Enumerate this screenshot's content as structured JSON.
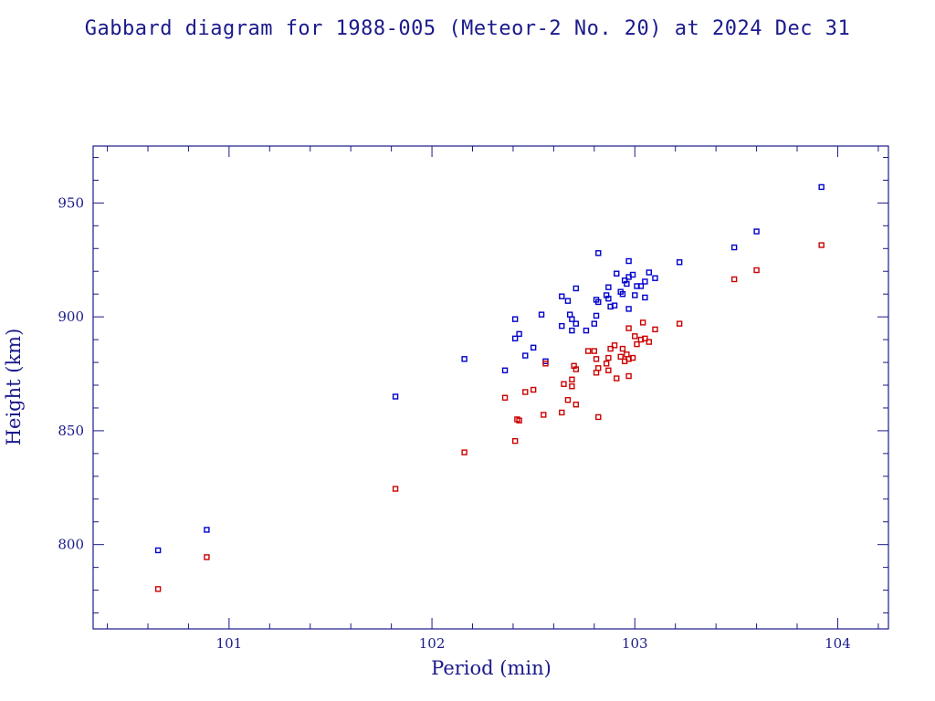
{
  "chart_data": {
    "type": "scatter",
    "title": "Gabbard diagram for 1988-005 (Meteor-2 No. 20) at 2024 Dec 31",
    "xlabel": "Period (min)",
    "ylabel": "Height (km)",
    "xlim": [
      100.33,
      104.25
    ],
    "ylim": [
      763,
      975
    ],
    "xticks": [
      101,
      102,
      103,
      104
    ],
    "yticks": [
      800,
      850,
      900,
      950
    ],
    "x_minor_step": 0.2,
    "y_minor_step": 10,
    "grid": false,
    "legend": "none",
    "colors": {
      "axes": "#1a1a8c",
      "text": "#1a1a8c",
      "apogee": "#0000cc",
      "perigee": "#cc0000"
    },
    "series": [
      {
        "key": "apogee",
        "points": [
          [
            100.65,
            797.5
          ],
          [
            100.89,
            806.5
          ],
          [
            101.82,
            865.0
          ],
          [
            102.16,
            881.5
          ],
          [
            102.36,
            876.5
          ],
          [
            102.41,
            899.0
          ],
          [
            102.41,
            890.5
          ],
          [
            102.43,
            892.5
          ],
          [
            102.46,
            883.0
          ],
          [
            102.5,
            886.5
          ],
          [
            102.54,
            901.0
          ],
          [
            102.56,
            880.5
          ],
          [
            102.64,
            909.0
          ],
          [
            102.64,
            896.0
          ],
          [
            102.67,
            907.0
          ],
          [
            102.68,
            901.0
          ],
          [
            102.69,
            899.0
          ],
          [
            102.69,
            894.0
          ],
          [
            102.71,
            912.5
          ],
          [
            102.71,
            897.0
          ],
          [
            102.76,
            894.0
          ],
          [
            102.8,
            897.0
          ],
          [
            102.81,
            900.5
          ],
          [
            102.81,
            907.5
          ],
          [
            102.82,
            906.5
          ],
          [
            102.82,
            928.0
          ],
          [
            102.86,
            909.5
          ],
          [
            102.87,
            913.0
          ],
          [
            102.87,
            908.0
          ],
          [
            102.88,
            904.5
          ],
          [
            102.9,
            905.0
          ],
          [
            102.91,
            919.0
          ],
          [
            102.93,
            911.0
          ],
          [
            102.94,
            910.0
          ],
          [
            102.95,
            916.0
          ],
          [
            102.96,
            914.5
          ],
          [
            102.97,
            917.5
          ],
          [
            102.97,
            903.5
          ],
          [
            102.97,
            924.5
          ],
          [
            102.99,
            918.5
          ],
          [
            103.0,
            909.5
          ],
          [
            103.01,
            913.5
          ],
          [
            103.03,
            913.5
          ],
          [
            103.05,
            908.5
          ],
          [
            103.05,
            915.5
          ],
          [
            103.07,
            919.5
          ],
          [
            103.1,
            917.0
          ],
          [
            103.22,
            924.0
          ],
          [
            103.49,
            930.5
          ],
          [
            103.6,
            937.5
          ],
          [
            103.92,
            957.0
          ]
        ]
      },
      {
        "key": "perigee",
        "points": [
          [
            100.65,
            780.5
          ],
          [
            100.89,
            794.5
          ],
          [
            101.82,
            824.5
          ],
          [
            102.16,
            840.5
          ],
          [
            102.36,
            864.5
          ],
          [
            102.41,
            845.5
          ],
          [
            102.42,
            855.0
          ],
          [
            102.43,
            854.5
          ],
          [
            102.46,
            867.0
          ],
          [
            102.5,
            868.0
          ],
          [
            102.55,
            857.0
          ],
          [
            102.56,
            879.5
          ],
          [
            102.64,
            858.0
          ],
          [
            102.65,
            870.5
          ],
          [
            102.67,
            863.5
          ],
          [
            102.69,
            869.5
          ],
          [
            102.69,
            872.5
          ],
          [
            102.7,
            878.5
          ],
          [
            102.71,
            877.0
          ],
          [
            102.71,
            861.5
          ],
          [
            102.77,
            885.0
          ],
          [
            102.8,
            885.0
          ],
          [
            102.81,
            875.5
          ],
          [
            102.81,
            881.5
          ],
          [
            102.82,
            877.5
          ],
          [
            102.82,
            856.0
          ],
          [
            102.86,
            879.5
          ],
          [
            102.87,
            876.5
          ],
          [
            102.87,
            882.0
          ],
          [
            102.88,
            886.0
          ],
          [
            102.9,
            887.5
          ],
          [
            102.91,
            873.0
          ],
          [
            102.93,
            882.5
          ],
          [
            102.94,
            886.0
          ],
          [
            102.95,
            880.5
          ],
          [
            102.96,
            883.5
          ],
          [
            102.97,
            881.5
          ],
          [
            102.97,
            874.0
          ],
          [
            102.97,
            895.0
          ],
          [
            102.99,
            882.0
          ],
          [
            103.0,
            891.5
          ],
          [
            103.01,
            888.0
          ],
          [
            103.03,
            890.0
          ],
          [
            103.04,
            897.5
          ],
          [
            103.05,
            890.5
          ],
          [
            103.07,
            889.0
          ],
          [
            103.1,
            894.5
          ],
          [
            103.22,
            897.0
          ],
          [
            103.49,
            916.5
          ],
          [
            103.6,
            920.5
          ],
          [
            103.92,
            931.5
          ]
        ]
      }
    ]
  }
}
